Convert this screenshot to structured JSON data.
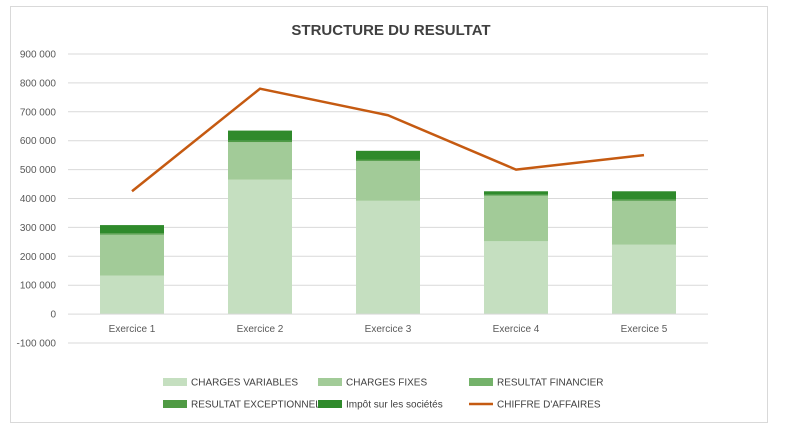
{
  "chart_data": {
    "type": "bar",
    "title": "STRUCTURE DU RESULTAT",
    "xlabel": "",
    "ylabel": "",
    "categories": [
      "Exercice 1",
      "Exercice 2",
      "Exercice 3",
      "Exercice 4",
      "Exercice 5"
    ],
    "ylim": [
      -100000,
      900000
    ],
    "yticks": [
      -100000,
      0,
      100000,
      200000,
      300000,
      400000,
      500000,
      600000,
      700000,
      800000,
      900000
    ],
    "ytick_labels": [
      "-100 000",
      "0",
      "100 000",
      "200 000",
      "300 000",
      "400 000",
      "500 000",
      "600 000",
      "700 000",
      "800 000",
      "900 000"
    ],
    "grid": true,
    "stacked": true,
    "legend_position": "bottom",
    "series": [
      {
        "name": "CHARGES VARIABLES",
        "kind": "bar",
        "color": "#c5dfc0",
        "values": [
          133000,
          465000,
          392000,
          252000,
          240000
        ]
      },
      {
        "name": "CHARGES FIXES",
        "kind": "bar",
        "color": "#a2cb98",
        "values": [
          142000,
          130000,
          138000,
          158000,
          152000
        ]
      },
      {
        "name": "RESULTAT FINANCIER",
        "kind": "bar",
        "color": "#74b26a",
        "values": [
          0,
          0,
          0,
          0,
          0
        ]
      },
      {
        "name": "RESULTAT EXCEPTIONNEL",
        "kind": "bar",
        "color": "#4f9a44",
        "values": [
          5000,
          5000,
          5000,
          3000,
          5000
        ]
      },
      {
        "name": "Impôt sur les sociétés",
        "kind": "bar",
        "color": "#2f8a2b",
        "values": [
          28000,
          35000,
          30000,
          12000,
          28000
        ]
      },
      {
        "name": "CHIFFRE D'AFFAIRES",
        "kind": "line",
        "color": "#c55a11",
        "values": [
          425000,
          780000,
          688000,
          500000,
          550000
        ]
      }
    ]
  }
}
